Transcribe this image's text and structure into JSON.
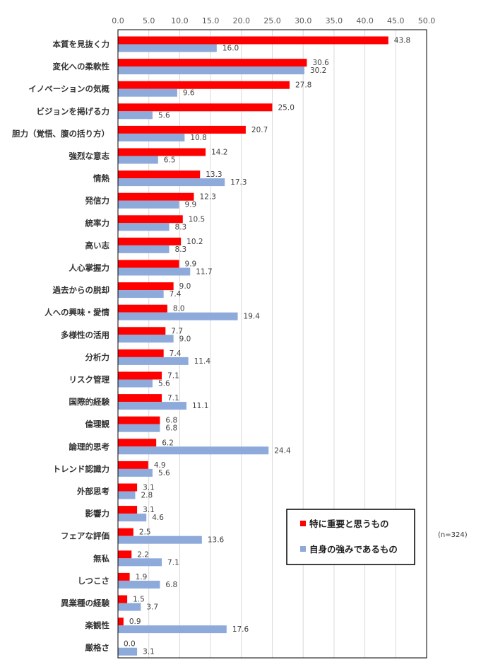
{
  "chart_data": {
    "type": "bar",
    "orientation": "horizontal",
    "xlim": [
      0,
      50
    ],
    "x_ticks": [
      "0.0",
      "5.0",
      "10.0",
      "15.0",
      "20.0",
      "25.0",
      "30.0",
      "35.0",
      "40.0",
      "45.0",
      "50.0"
    ],
    "grid": "vertical",
    "categories": [
      "本質を見抜く力",
      "変化への柔軟性",
      "イノベーションの気概",
      "ビジョンを掲げる力",
      "胆力（覚悟、腹の括り方）",
      "強烈な意志",
      "情熱",
      "発信力",
      "統率力",
      "高い志",
      "人心掌握力",
      "過去からの脱却",
      "人への興味・愛情",
      "多様性の活用",
      "分析力",
      "リスク管理",
      "国際的経験",
      "倫理観",
      "論理的思考",
      "トレンド認識力",
      "外部思考",
      "影響力",
      "フェアな評価",
      "無私",
      "しつこさ",
      "異業種の経験",
      "楽観性",
      "厳格さ"
    ],
    "series": [
      {
        "name": "特に重要と思うもの",
        "color": "#ff0000",
        "values": [
          43.8,
          30.6,
          27.8,
          25.0,
          20.7,
          14.2,
          13.3,
          12.3,
          10.5,
          10.2,
          9.9,
          9.0,
          8.0,
          7.7,
          7.4,
          7.1,
          7.1,
          6.8,
          6.2,
          4.9,
          3.1,
          3.1,
          2.5,
          2.2,
          1.9,
          1.5,
          0.9,
          0.0
        ]
      },
      {
        "name": "自身の強みであるもの",
        "color": "#8eaadb",
        "values": [
          16.0,
          30.2,
          9.6,
          5.6,
          10.8,
          6.5,
          17.3,
          9.9,
          8.3,
          8.3,
          11.7,
          7.4,
          19.4,
          9.0,
          11.4,
          5.6,
          11.1,
          6.8,
          24.4,
          5.6,
          2.8,
          4.6,
          13.6,
          7.1,
          6.8,
          3.7,
          17.6,
          3.1
        ]
      }
    ],
    "legend_position": "bottom-right",
    "note": "(n=324)"
  }
}
